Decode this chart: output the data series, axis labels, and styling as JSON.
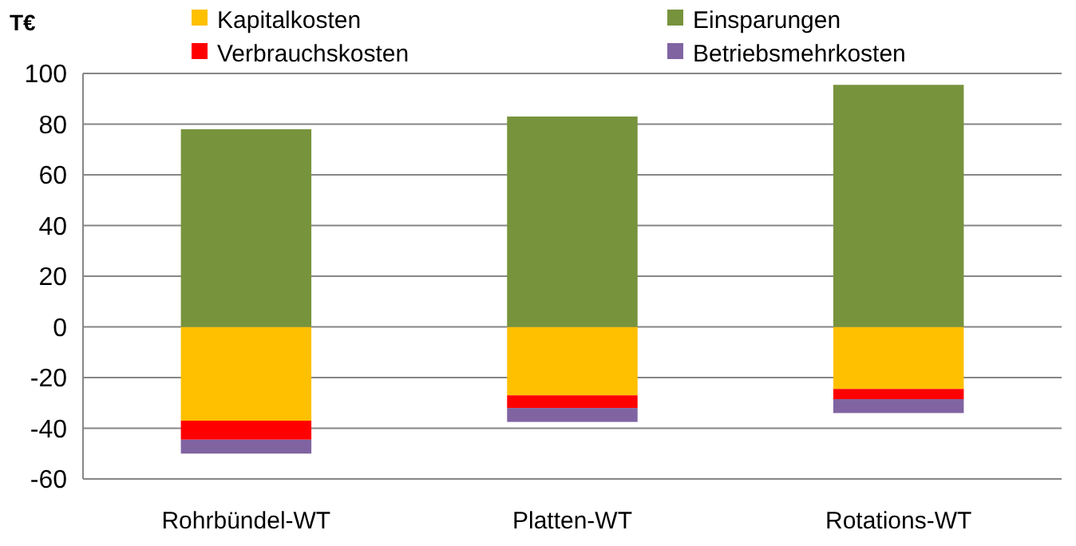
{
  "chart_data": {
    "type": "bar",
    "stacked": true,
    "ylabel": "T€",
    "categories": [
      "Rohrbündel-WT",
      "Platten-WT",
      "Rotations-WT"
    ],
    "series": [
      {
        "name": "Kapitalkosten",
        "color": "#ffc000",
        "values": [
          -37,
          -27,
          -24.5
        ]
      },
      {
        "name": "Einsparungen",
        "color": "#77933c",
        "values": [
          78,
          83,
          95.5
        ]
      },
      {
        "name": "Verbrauchskosten",
        "color": "#ff0000",
        "values": [
          -7.5,
          -5,
          -4
        ]
      },
      {
        "name": "Betriebsmehrkosten",
        "color": "#8064a2",
        "values": [
          -5.5,
          -5.5,
          -5.5
        ]
      }
    ],
    "ylim": [
      -60,
      100
    ],
    "yticks": [
      -60,
      -40,
      -20,
      0,
      20,
      40,
      60,
      80,
      100
    ],
    "grid": "y",
    "legend": "top"
  }
}
